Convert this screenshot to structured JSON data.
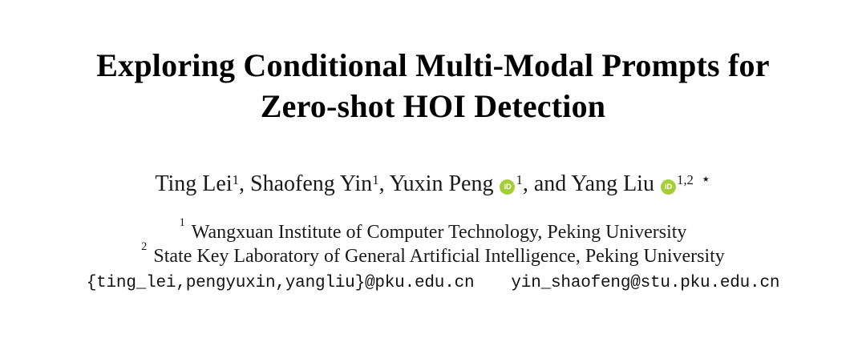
{
  "page": {
    "background_color": "#ffffff",
    "text_color": "#000000"
  },
  "title": {
    "line1": "Exploring Conditional Multi-Modal Prompts for",
    "line2": "Zero-shot HOI Detection"
  },
  "authors": {
    "items": [
      {
        "name": "Ting Lei",
        "sup": "1",
        "sep": ", "
      },
      {
        "name": "Shaofeng Yin",
        "sup": "1",
        "sep": ", "
      },
      {
        "name": "Yuxin Peng",
        "sup": "1",
        "sep": ", and "
      },
      {
        "name": "Yang Liu",
        "sup": "1,2",
        "sep": ""
      }
    ],
    "corresponding_marker": "⋆"
  },
  "icons": {
    "orcid_label": "iD",
    "orcid_color": "#A6CE39"
  },
  "affiliations": [
    {
      "marker": "1",
      "text": "Wangxuan Institute of Computer Technology, Peking University"
    },
    {
      "marker": "2",
      "text": "State Key Laboratory of General Artificial Intelligence, Peking University"
    }
  ],
  "emails": {
    "group": "{ting_lei,pengyuxin,yangliu}@pku.edu.cn",
    "individual": "yin_shaofeng@stu.pku.edu.cn"
  }
}
